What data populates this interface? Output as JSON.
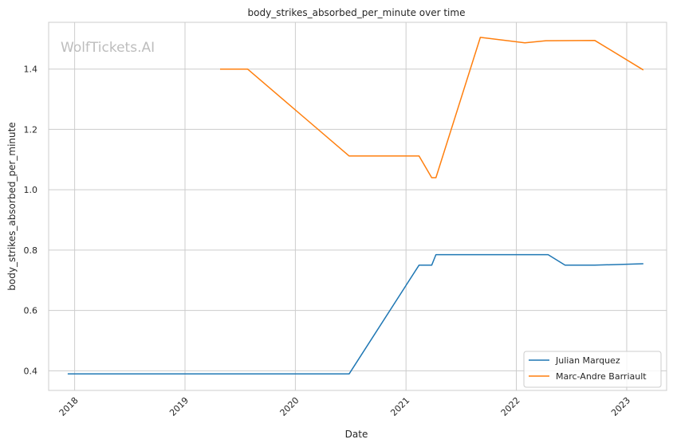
{
  "chart_data": {
    "type": "line",
    "title": "body_strikes_absorbed_per_minute over time",
    "xlabel": "Date",
    "ylabel": "body_strikes_absorbed_per_minute",
    "watermark": "WolfTickets.AI",
    "x_ticks": [
      "2018",
      "2019",
      "2020",
      "2021",
      "2022",
      "2023"
    ],
    "y_ticks": [
      "0.4",
      "0.6",
      "0.8",
      "1.0",
      "1.2",
      "1.4"
    ],
    "xlim": [
      "2017-10-07",
      "2023-05-13"
    ],
    "ylim": [
      0.335,
      1.555
    ],
    "grid": true,
    "legend_position": "lower-right",
    "series": [
      {
        "name": "Julian Marquez",
        "color": "#1f77b4",
        "points": [
          [
            "2017-12-09",
            0.39
          ],
          [
            "2020-06-27",
            0.39
          ],
          [
            "2021-02-13",
            0.75
          ],
          [
            "2021-03-27",
            0.75
          ],
          [
            "2021-04-10",
            0.785
          ],
          [
            "2022-04-16",
            0.785
          ],
          [
            "2022-06-11",
            0.75
          ],
          [
            "2022-09-17",
            0.75
          ],
          [
            "2023-02-25",
            0.755
          ]
        ]
      },
      {
        "name": "Marc-Andre Barriault",
        "color": "#ff7f0e",
        "points": [
          [
            "2019-04-27",
            1.4
          ],
          [
            "2019-07-27",
            1.4
          ],
          [
            "2020-06-27",
            1.112
          ],
          [
            "2021-02-13",
            1.112
          ],
          [
            "2021-03-27",
            1.04
          ],
          [
            "2021-04-10",
            1.04
          ],
          [
            "2021-09-04",
            1.505
          ],
          [
            "2022-01-29",
            1.487
          ],
          [
            "2022-04-09",
            1.494
          ],
          [
            "2022-09-17",
            1.495
          ],
          [
            "2023-02-25",
            1.397
          ]
        ]
      }
    ]
  }
}
